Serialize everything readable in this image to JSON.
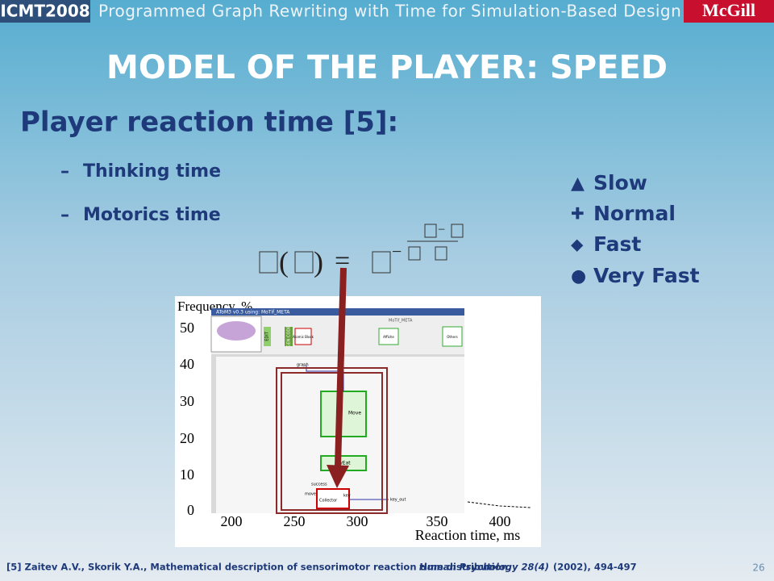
{
  "header": {
    "badge": "ICMT2008",
    "title": "Programmed Graph Rewriting with Time for Simulation-Based Design",
    "logo": "McGill"
  },
  "slide": {
    "title": "MODEL OF THE PLAYER: SPEED",
    "heading": "Player reaction time [5]:",
    "bullets": [
      {
        "marker": "–",
        "text": "Thinking time"
      },
      {
        "marker": "–",
        "text": "Motorics time"
      }
    ],
    "formula": {
      "open": "(",
      "close": ")",
      "equals": "=",
      "minus": [
        "−",
        "−"
      ]
    },
    "legend": [
      {
        "symbol": "▲",
        "text": "Slow"
      },
      {
        "symbol": "✚",
        "text": "Normal"
      },
      {
        "symbol": "◆",
        "text": "Fast"
      },
      {
        "symbol": "●",
        "text": "Very Fast"
      }
    ],
    "figure": {
      "y_label": "Frequency, %",
      "y_ticks": [
        "0",
        "10",
        "20",
        "30",
        "40",
        "50"
      ],
      "x_ticks": [
        "200",
        "250",
        "300",
        "350",
        "400"
      ],
      "x_label": "Reaction time, ms",
      "screenshot": {
        "window_title": "AToM3 v0.3 using: MoTif_META",
        "toolbar_title": "MoTif_META",
        "buttons": [
          "EDIT",
          "GEN CODE",
          "Atomic Block",
          "Affiche",
          "Others"
        ],
        "labels": {
          "graph": "graph",
          "move_block": "Move",
          "tryeat": "TryEat",
          "collector": "Collector",
          "success": "success",
          "move": "move",
          "key": "key",
          "key_out": "key_out"
        }
      }
    }
  },
  "footer": {
    "reference": "[5] Zaitev A.V., Skorik Y.A., Mathematical description of sensorimotor reaction time distribution,",
    "journal": "Human Psychology 28(4)",
    "details": "(2002), 494-497",
    "page": "26"
  }
}
